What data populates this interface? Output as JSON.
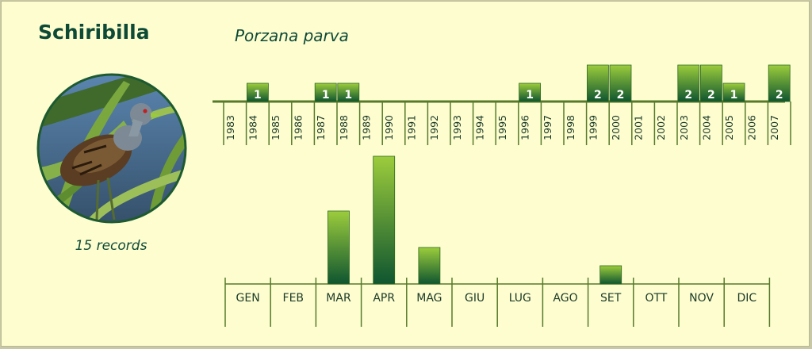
{
  "header": {
    "common_name": "Schiribilla",
    "scientific_name": "Porzana parva"
  },
  "records_label": "15 records",
  "colors": {
    "bar_top": "#9ccc3c",
    "bar_bottom": "#0f5530",
    "axis": "#567a2a",
    "text": "#0d4a36"
  },
  "chart_data": [
    {
      "type": "bar",
      "categories": [
        "1983",
        "1984",
        "1985",
        "1986",
        "1987",
        "1988",
        "1989",
        "1990",
        "1991",
        "1992",
        "1993",
        "1994",
        "1995",
        "1996",
        "1997",
        "1998",
        "1999",
        "2000",
        "2001",
        "2002",
        "2003",
        "2004",
        "2005",
        "2006",
        "2007"
      ],
      "values": [
        0,
        1,
        0,
        0,
        1,
        1,
        0,
        0,
        0,
        0,
        0,
        0,
        0,
        1,
        0,
        0,
        2,
        2,
        0,
        0,
        2,
        2,
        1,
        0,
        2
      ],
      "data_labels": [
        "",
        "1",
        "",
        "",
        "1",
        "1",
        "",
        "",
        "",
        "",
        "",
        "",
        "",
        "1",
        "",
        "",
        "2",
        "2",
        "",
        "",
        "2",
        "2",
        "1",
        "",
        "2"
      ],
      "ylim": [
        0,
        2
      ]
    },
    {
      "type": "bar",
      "categories": [
        "GEN",
        "FEB",
        "MAR",
        "APR",
        "MAG",
        "GIU",
        "LUG",
        "AGO",
        "SET",
        "OTT",
        "NOV",
        "DIC"
      ],
      "values": [
        0,
        0,
        4,
        7,
        2,
        0,
        0,
        0,
        1,
        0,
        0,
        0
      ],
      "ylim": [
        0,
        7
      ]
    }
  ]
}
